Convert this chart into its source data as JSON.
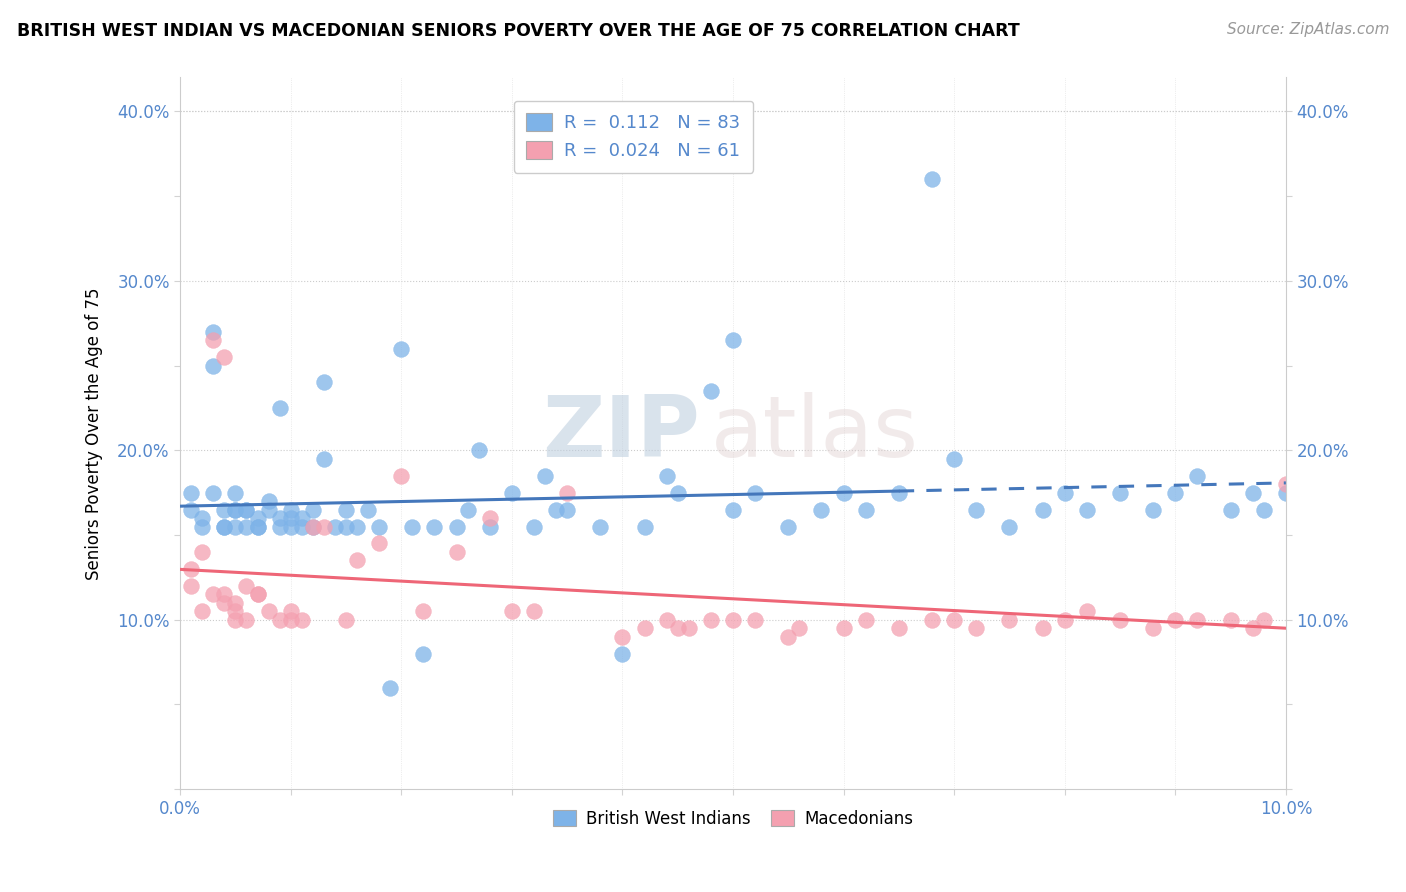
{
  "title": "BRITISH WEST INDIAN VS MACEDONIAN SENIORS POVERTY OVER THE AGE OF 75 CORRELATION CHART",
  "source": "Source: ZipAtlas.com",
  "ylabel": "Seniors Poverty Over the Age of 75",
  "xlim": [
    0.0,
    0.1
  ],
  "ylim": [
    0.0,
    0.42
  ],
  "xticks": [
    0.0,
    0.01,
    0.02,
    0.03,
    0.04,
    0.05,
    0.06,
    0.07,
    0.08,
    0.09,
    0.1
  ],
  "yticks": [
    0.0,
    0.05,
    0.1,
    0.15,
    0.2,
    0.25,
    0.3,
    0.35,
    0.4
  ],
  "xticklabels": [
    "0.0%",
    "",
    "",
    "",
    "",
    "",
    "",
    "",
    "",
    "",
    "10.0%"
  ],
  "yticklabels": [
    "",
    "",
    "10.0%",
    "",
    "20.0%",
    "",
    "30.0%",
    "",
    "40.0%"
  ],
  "blue_color": "#7EB3E8",
  "pink_color": "#F4A0B0",
  "blue_line_color": "#4477BB",
  "pink_line_color": "#EE6677",
  "tick_color": "#5588CC",
  "legend_blue_R": "0.112",
  "legend_blue_N": "83",
  "legend_pink_R": "0.024",
  "legend_pink_N": "61",
  "watermark_zip": "ZIP",
  "watermark_atlas": "atlas",
  "blue_points_x": [
    0.001,
    0.001,
    0.002,
    0.002,
    0.003,
    0.003,
    0.003,
    0.004,
    0.004,
    0.004,
    0.005,
    0.005,
    0.005,
    0.005,
    0.006,
    0.006,
    0.006,
    0.007,
    0.007,
    0.007,
    0.008,
    0.008,
    0.009,
    0.009,
    0.009,
    0.01,
    0.01,
    0.01,
    0.011,
    0.011,
    0.012,
    0.012,
    0.013,
    0.013,
    0.014,
    0.015,
    0.015,
    0.016,
    0.017,
    0.018,
    0.02,
    0.021,
    0.022,
    0.023,
    0.025,
    0.026,
    0.027,
    0.028,
    0.03,
    0.032,
    0.034,
    0.035,
    0.038,
    0.04,
    0.042,
    0.045,
    0.048,
    0.05,
    0.052,
    0.055,
    0.058,
    0.06,
    0.062,
    0.065,
    0.068,
    0.07,
    0.072,
    0.075,
    0.078,
    0.08,
    0.082,
    0.085,
    0.088,
    0.09,
    0.092,
    0.095,
    0.097,
    0.098,
    0.1,
    0.05,
    0.033,
    0.019,
    0.044
  ],
  "blue_points_y": [
    0.165,
    0.175,
    0.155,
    0.16,
    0.25,
    0.27,
    0.175,
    0.165,
    0.155,
    0.155,
    0.155,
    0.165,
    0.165,
    0.175,
    0.165,
    0.165,
    0.155,
    0.155,
    0.16,
    0.155,
    0.165,
    0.17,
    0.155,
    0.16,
    0.225,
    0.155,
    0.165,
    0.16,
    0.155,
    0.16,
    0.155,
    0.165,
    0.24,
    0.195,
    0.155,
    0.155,
    0.165,
    0.155,
    0.165,
    0.155,
    0.26,
    0.155,
    0.08,
    0.155,
    0.155,
    0.165,
    0.2,
    0.155,
    0.175,
    0.155,
    0.165,
    0.165,
    0.155,
    0.08,
    0.155,
    0.175,
    0.235,
    0.165,
    0.175,
    0.155,
    0.165,
    0.175,
    0.165,
    0.175,
    0.36,
    0.195,
    0.165,
    0.155,
    0.165,
    0.175,
    0.165,
    0.175,
    0.165,
    0.175,
    0.185,
    0.165,
    0.175,
    0.165,
    0.175,
    0.265,
    0.185,
    0.06,
    0.185
  ],
  "pink_points_x": [
    0.001,
    0.001,
    0.002,
    0.002,
    0.003,
    0.003,
    0.004,
    0.004,
    0.004,
    0.005,
    0.005,
    0.005,
    0.006,
    0.006,
    0.007,
    0.007,
    0.008,
    0.009,
    0.01,
    0.01,
    0.011,
    0.012,
    0.013,
    0.015,
    0.016,
    0.018,
    0.02,
    0.022,
    0.025,
    0.028,
    0.03,
    0.032,
    0.035,
    0.04,
    0.045,
    0.048,
    0.05,
    0.055,
    0.06,
    0.065,
    0.068,
    0.07,
    0.075,
    0.078,
    0.08,
    0.082,
    0.085,
    0.088,
    0.09,
    0.092,
    0.095,
    0.097,
    0.098,
    0.1,
    0.042,
    0.044,
    0.046,
    0.052,
    0.056,
    0.062,
    0.072
  ],
  "pink_points_y": [
    0.12,
    0.13,
    0.105,
    0.14,
    0.115,
    0.265,
    0.11,
    0.115,
    0.255,
    0.1,
    0.105,
    0.11,
    0.12,
    0.1,
    0.115,
    0.115,
    0.105,
    0.1,
    0.1,
    0.105,
    0.1,
    0.155,
    0.155,
    0.1,
    0.135,
    0.145,
    0.185,
    0.105,
    0.14,
    0.16,
    0.105,
    0.105,
    0.175,
    0.09,
    0.095,
    0.1,
    0.1,
    0.09,
    0.095,
    0.095,
    0.1,
    0.1,
    0.1,
    0.095,
    0.1,
    0.105,
    0.1,
    0.095,
    0.1,
    0.1,
    0.1,
    0.095,
    0.1,
    0.18,
    0.095,
    0.1,
    0.095,
    0.1,
    0.095,
    0.1,
    0.095
  ]
}
